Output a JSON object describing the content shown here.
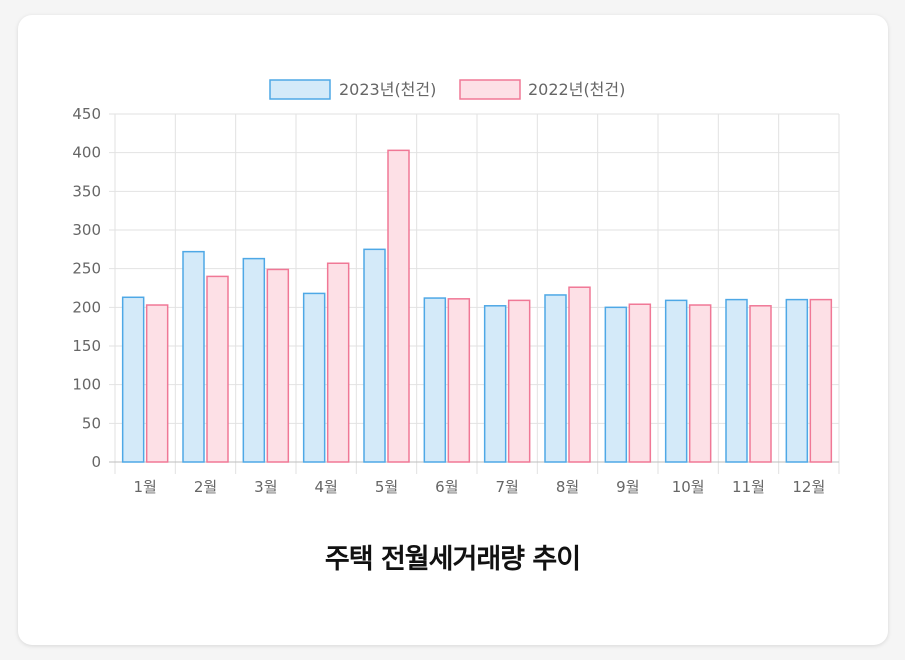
{
  "chart_data": {
    "type": "bar",
    "title": "주택 전월세거래량 추이",
    "categories": [
      "1월",
      "2월",
      "3월",
      "4월",
      "5월",
      "6월",
      "7월",
      "8월",
      "9월",
      "10월",
      "11월",
      "12월"
    ],
    "series": [
      {
        "name": "2023년(천건)",
        "values": [
          213,
          272,
          263,
          218,
          275,
          212,
          202,
          216,
          200,
          209,
          210,
          210
        ]
      },
      {
        "name": "2022년(천건)",
        "values": [
          203,
          240,
          249,
          257,
          403,
          211,
          209,
          226,
          204,
          203,
          202,
          210
        ]
      }
    ],
    "ylim": [
      0,
      450
    ],
    "yticks": [
      0,
      50,
      100,
      150,
      200,
      250,
      300,
      350,
      400,
      450
    ],
    "grid": true,
    "legend_position": "top-center",
    "colors": {
      "series_0_fill": "#d4eaf9",
      "series_0_stroke": "#4ea8e6",
      "series_1_fill": "#fde0e6",
      "series_1_stroke": "#f07896",
      "grid": "#e2e2e2",
      "axis_text": "#666666"
    }
  }
}
